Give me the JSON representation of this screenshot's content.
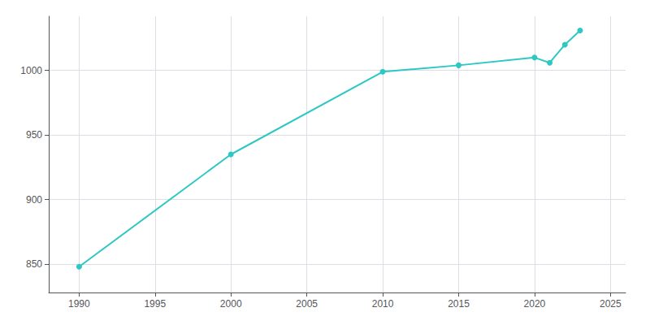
{
  "chart_data": {
    "type": "line",
    "x": [
      1990,
      2000,
      2010,
      2015,
      2020,
      2021,
      2022,
      2023
    ],
    "values": [
      848,
      935,
      999,
      1004,
      1010,
      1006,
      1020,
      1031
    ],
    "color": "#2ec8c4",
    "marker": "circle",
    "xlim": [
      1988,
      2026
    ],
    "ylim": [
      828,
      1042
    ],
    "xticks": [
      1990,
      1995,
      2000,
      2005,
      2010,
      2015,
      2020,
      2025
    ],
    "yticks": [
      850,
      900,
      950,
      1000
    ],
    "grid": true
  }
}
